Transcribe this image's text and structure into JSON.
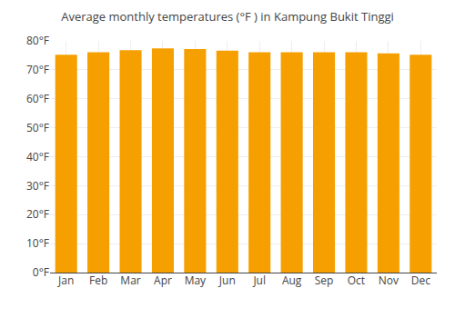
{
  "chart_data": {
    "type": "bar",
    "title": "Average monthly temperatures (°F ) in Kampung Bukit Tinggi",
    "categories": [
      "Jan",
      "Feb",
      "Mar",
      "Apr",
      "May",
      "Jun",
      "Jul",
      "Aug",
      "Sep",
      "Oct",
      "Nov",
      "Dec"
    ],
    "values": [
      75.2,
      76.1,
      76.8,
      77.4,
      77.2,
      76.6,
      76.1,
      76.1,
      76.1,
      76.1,
      75.7,
      75.2
    ],
    "color": "#F5A000",
    "ylim": [
      0,
      80
    ],
    "yticks": [
      {
        "value": 0,
        "label": "0°F"
      },
      {
        "value": 10,
        "label": "10°F"
      },
      {
        "value": 20,
        "label": "20°F"
      },
      {
        "value": 30,
        "label": "30°F"
      },
      {
        "value": 40,
        "label": "40°F"
      },
      {
        "value": 50,
        "label": "50°F"
      },
      {
        "value": 60,
        "label": "60°F"
      },
      {
        "value": 70,
        "label": "70°F"
      },
      {
        "value": 80,
        "label": "80°F"
      }
    ],
    "grid": true
  }
}
